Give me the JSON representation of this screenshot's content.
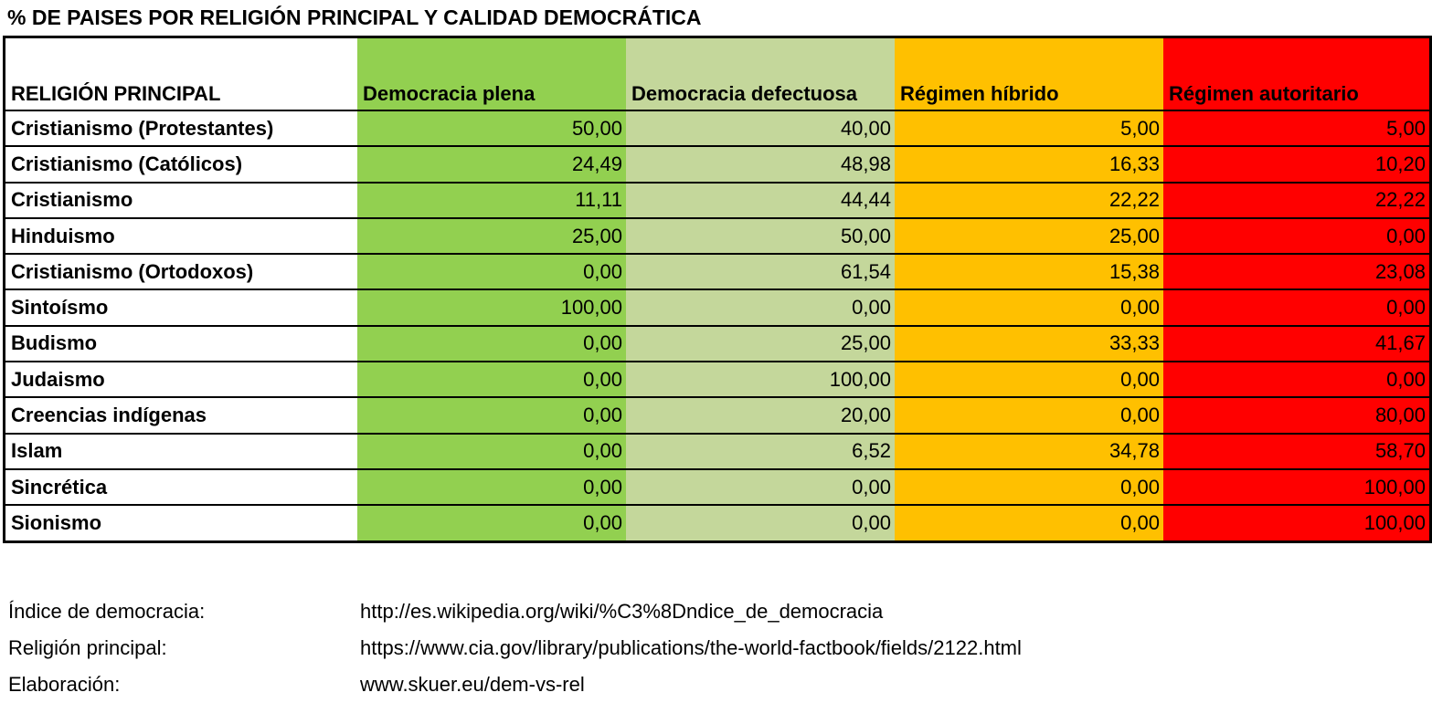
{
  "title": "% DE PAISES POR RELIGIÓN PRINCIPAL Y CALIDAD DEMOCRÁTICA",
  "table": {
    "headers": [
      "RELIGIÓN PRINCIPAL",
      "Democracia plena",
      "Democracia defectuosa",
      "Régimen híbrido",
      "Régimen autoritario"
    ],
    "header_colors": [
      "#ffffff",
      "#92d050",
      "#c4d79b",
      "#ffc000",
      "#ff0000"
    ],
    "rows": [
      {
        "religion": "Cristianismo (Protestantes)",
        "values": [
          "50,00",
          "40,00",
          "5,00",
          "5,00"
        ]
      },
      {
        "religion": "Cristianismo (Católicos)",
        "values": [
          "24,49",
          "48,98",
          "16,33",
          "10,20"
        ]
      },
      {
        "religion": "Cristianismo",
        "values": [
          "11,11",
          "44,44",
          "22,22",
          "22,22"
        ]
      },
      {
        "religion": "Hinduismo",
        "values": [
          "25,00",
          "50,00",
          "25,00",
          "0,00"
        ]
      },
      {
        "religion": "Cristianismo (Ortodoxos)",
        "values": [
          "0,00",
          "61,54",
          "15,38",
          "23,08"
        ]
      },
      {
        "religion": "Sintoísmo",
        "values": [
          "100,00",
          "0,00",
          "0,00",
          "0,00"
        ]
      },
      {
        "religion": "Budismo",
        "values": [
          "0,00",
          "25,00",
          "33,33",
          "41,67"
        ]
      },
      {
        "religion": "Judaismo",
        "values": [
          "0,00",
          "100,00",
          "0,00",
          "0,00"
        ]
      },
      {
        "religion": "Creencias indígenas",
        "values": [
          "0,00",
          "20,00",
          "0,00",
          "80,00"
        ]
      },
      {
        "religion": "Islam",
        "values": [
          "0,00",
          "6,52",
          "34,78",
          "58,70"
        ]
      },
      {
        "religion": "Sincrética",
        "values": [
          "0,00",
          "0,00",
          "0,00",
          "100,00"
        ]
      },
      {
        "religion": "Sionismo",
        "values": [
          "0,00",
          "0,00",
          "0,00",
          "100,00"
        ]
      }
    ]
  },
  "footer": [
    {
      "label": "Índice de democracia:",
      "value": "http://es.wikipedia.org/wiki/%C3%8Dndice_de_democracia"
    },
    {
      "label": "Religión principal:",
      "value": "https://www.cia.gov/library/publications/the-world-factbook/fields/2122.html"
    },
    {
      "label": "Elaboración:",
      "value": "www.skuer.eu/dem-vs-rel"
    }
  ]
}
